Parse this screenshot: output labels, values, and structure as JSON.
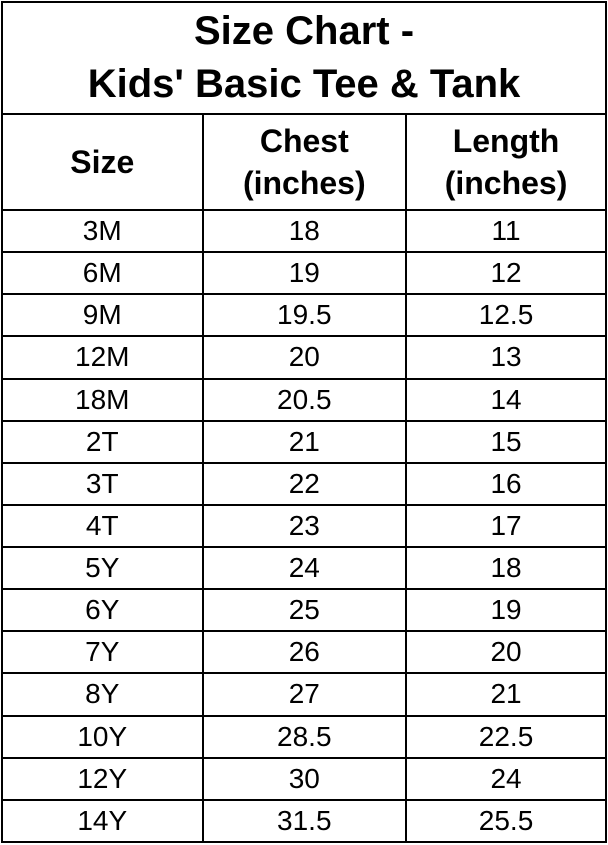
{
  "title": "Size Chart -\nKids' Basic Tee & Tank",
  "colors": {
    "border": "#000000",
    "text": "#000000",
    "background": "#ffffff"
  },
  "table": {
    "columns": [
      "Size",
      "Chest\n(inches)",
      "Length\n(inches)"
    ],
    "rows": [
      {
        "size": "3M",
        "chest": "18",
        "length": "11"
      },
      {
        "size": "6M",
        "chest": "19",
        "length": "12"
      },
      {
        "size": "9M",
        "chest": "19.5",
        "length": "12.5"
      },
      {
        "size": "12M",
        "chest": "20",
        "length": "13"
      },
      {
        "size": "18M",
        "chest": "20.5",
        "length": "14"
      },
      {
        "size": "2T",
        "chest": "21",
        "length": "15"
      },
      {
        "size": "3T",
        "chest": "22",
        "length": "16"
      },
      {
        "size": "4T",
        "chest": "23",
        "length": "17"
      },
      {
        "size": "5Y",
        "chest": "24",
        "length": "18"
      },
      {
        "size": "6Y",
        "chest": "25",
        "length": "19"
      },
      {
        "size": "7Y",
        "chest": "26",
        "length": "20"
      },
      {
        "size": "8Y",
        "chest": "27",
        "length": "21"
      },
      {
        "size": "10Y",
        "chest": "28.5",
        "length": "22.5"
      },
      {
        "size": "12Y",
        "chest": "30",
        "length": "24"
      },
      {
        "size": "14Y",
        "chest": "31.5",
        "length": "25.5"
      }
    ]
  },
  "chart_data": {
    "type": "table",
    "title": "Size Chart - Kids' Basic Tee & Tank",
    "columns": [
      "Size",
      "Chest (inches)",
      "Length (inches)"
    ],
    "rows": [
      [
        "3M",
        18,
        11
      ],
      [
        "6M",
        19,
        12
      ],
      [
        "9M",
        19.5,
        12.5
      ],
      [
        "12M",
        20,
        13
      ],
      [
        "18M",
        20.5,
        14
      ],
      [
        "2T",
        21,
        15
      ],
      [
        "3T",
        22,
        16
      ],
      [
        "4T",
        23,
        17
      ],
      [
        "5Y",
        24,
        18
      ],
      [
        "6Y",
        25,
        19
      ],
      [
        "7Y",
        26,
        20
      ],
      [
        "8Y",
        27,
        21
      ],
      [
        "10Y",
        28.5,
        22.5
      ],
      [
        "12Y",
        30,
        24
      ],
      [
        "14Y",
        31.5,
        25.5
      ]
    ]
  }
}
